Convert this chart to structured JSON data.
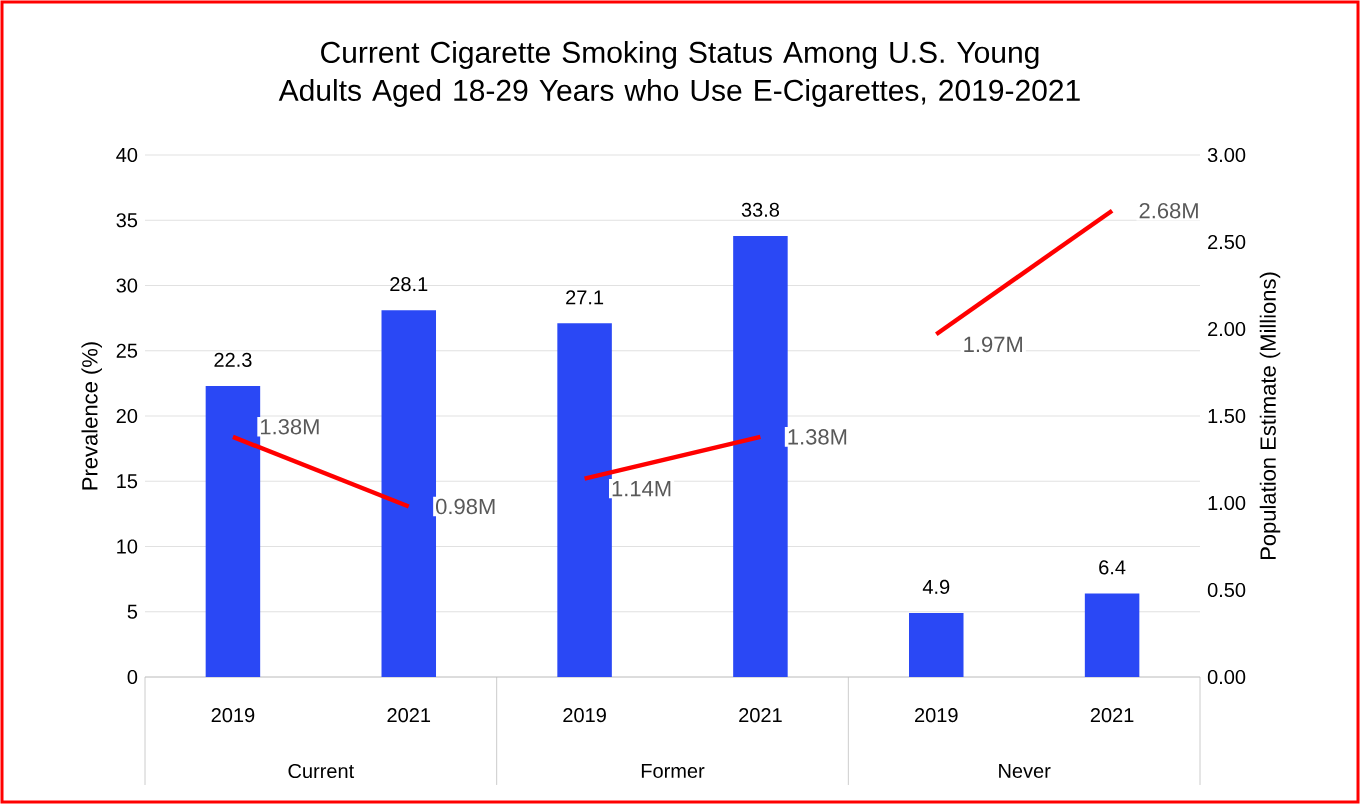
{
  "chart_data": {
    "type": "bar",
    "title": "Current Cigarette Smoking Status Among U.S. Young Adults Aged 18-29 Years who Use E-Cigarettes, 2019-2021",
    "ylabel": "Prevalence (%)",
    "y2label": "Population Estimate (Millions)",
    "categories": [
      "2019",
      "2021",
      "2019",
      "2021",
      "2019",
      "2021"
    ],
    "annotations": [
      "Current",
      "Former",
      "Never"
    ],
    "series": [
      {
        "color": "#2a48f5",
        "values": [
          22.3,
          28.1,
          27.1,
          33.8,
          4.9,
          6.4
        ]
      },
      {
        "type": "line",
        "axis": "y2",
        "color": "#ff0000",
        "values": [
          1.38,
          0.98,
          null,
          null,
          null,
          null
        ],
        "value_labels": [
          "1.38M",
          "0.98M",
          null,
          null,
          null,
          null
        ]
      },
      {
        "type": "line",
        "axis": "y2",
        "color": "#ff0000",
        "values": [
          null,
          null,
          1.14,
          1.38,
          null,
          null
        ],
        "value_labels": [
          null,
          null,
          "1.14M",
          "1.38M",
          null,
          null
        ]
      },
      {
        "type": "line",
        "axis": "y2",
        "color": "#ff0000",
        "values": [
          null,
          null,
          null,
          null,
          1.97,
          2.68
        ],
        "value_labels": [
          null,
          null,
          null,
          null,
          "1.97M",
          "2.68M"
        ]
      }
    ],
    "data_labels": true,
    "grid": "y",
    "ylim": [
      0,
      40
    ],
    "yticks": [
      0,
      5,
      10,
      15,
      20,
      25,
      30,
      35,
      40
    ],
    "y2lim": [
      0,
      3
    ],
    "y2ticks": [
      {
        "value": 0,
        "label": "0.00"
      },
      {
        "value": 0.5,
        "label": "0.50"
      },
      {
        "value": 1,
        "label": "1.00"
      },
      {
        "value": 1.5,
        "label": "1.50"
      },
      {
        "value": 2,
        "label": "2.00"
      },
      {
        "value": 2.5,
        "label": "2.50"
      },
      {
        "value": 3,
        "label": "3.00"
      }
    ]
  }
}
